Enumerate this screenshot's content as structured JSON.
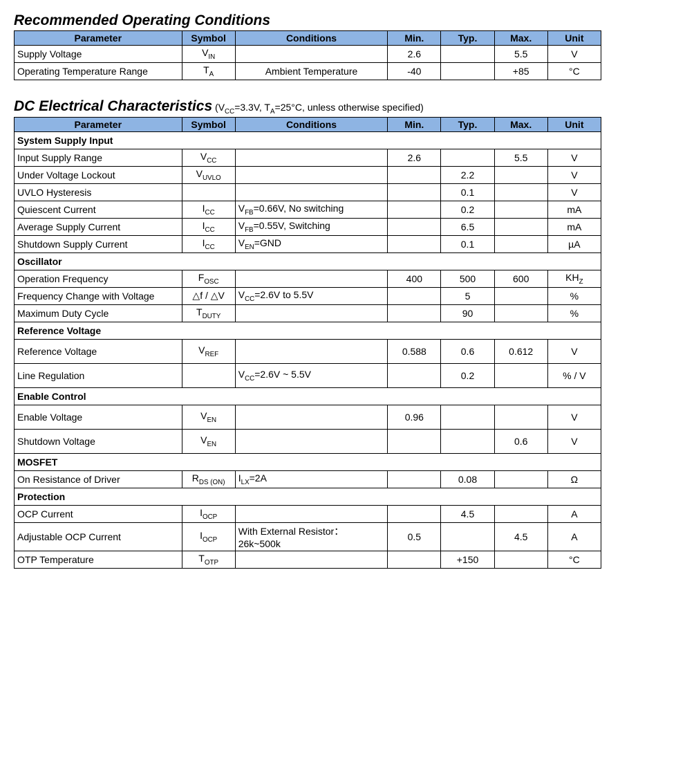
{
  "colors": {
    "header_bg": "#8eb4e3",
    "border": "#000000",
    "page_bg": "#ffffff",
    "text": "#000000"
  },
  "section1": {
    "title": "Recommended Operating Conditions",
    "headers": {
      "param": "Parameter",
      "symbol": "Symbol",
      "cond": "Conditions",
      "min": "Min.",
      "typ": "Typ.",
      "max": "Max.",
      "unit": "Unit"
    },
    "rows": [
      {
        "param": "Supply Voltage",
        "symbol_main": "V",
        "symbol_sub": "IN",
        "cond": "",
        "cond_align": "center",
        "min": "2.6",
        "typ": "",
        "max": "5.5",
        "unit": "V"
      },
      {
        "param": "Operating Temperature Range",
        "symbol_main": "T",
        "symbol_sub": "A",
        "cond": "Ambient Temperature",
        "cond_align": "center",
        "min": "-40",
        "typ": "",
        "max": "+85",
        "unit": "°C"
      }
    ]
  },
  "section2": {
    "title": "DC Electrical Characteristics",
    "title_cond_prefix": " (V",
    "title_cond_sub1": "CC",
    "title_cond_mid1": "=3.3V, T",
    "title_cond_sub2": "A",
    "title_cond_suffix": "=25°C, unless otherwise specified)",
    "headers": {
      "param": "Parameter",
      "symbol": "Symbol",
      "cond": "Conditions",
      "min": "Min.",
      "typ": "Typ.",
      "max": "Max.",
      "unit": "Unit"
    },
    "groups": [
      {
        "name": "System Supply Input",
        "rows": [
          {
            "param": "Input Supply Range",
            "symbol_main": "V",
            "symbol_sub": "CC",
            "cond_html": "",
            "min": "2.6",
            "typ": "",
            "max": "5.5",
            "unit": "V"
          },
          {
            "param": "Under Voltage Lockout",
            "symbol_main": "V",
            "symbol_sub": "UVLO",
            "cond_html": "",
            "min": "",
            "typ": "2.2",
            "max": "",
            "unit": "V"
          },
          {
            "param": "UVLO Hysteresis",
            "symbol_main": "",
            "symbol_sub": "",
            "cond_html": "",
            "min": "",
            "typ": "0.1",
            "max": "",
            "unit": "V"
          },
          {
            "param": "Quiescent Current",
            "symbol_main": "I",
            "symbol_sub": "CC",
            "cond_html": "V<span class=\"sub\">FB</span>=0.66V, No switching",
            "min": "",
            "typ": "0.2",
            "max": "",
            "unit": "mA"
          },
          {
            "param": "Average Supply Current",
            "symbol_main": "I",
            "symbol_sub": "CC",
            "cond_html": "V<span class=\"sub\">FB</span>=0.55V, Switching",
            "min": "",
            "typ": "6.5",
            "max": "",
            "unit": "mA"
          },
          {
            "param": "Shutdown Supply Current",
            "symbol_main": "I",
            "symbol_sub": "CC",
            "cond_html": "V<span class=\"sub\">EN</span>=GND",
            "min": "",
            "typ": "0.1",
            "max": "",
            "unit": "µA"
          }
        ]
      },
      {
        "name": "Oscillator",
        "rows": [
          {
            "param": "Operation Frequency",
            "symbol_main": "F",
            "symbol_sub": "OSC",
            "cond_html": "",
            "min": "400",
            "typ": "500",
            "max": "600",
            "unit_html": "KH<span class=\"sub\">Z</span>"
          },
          {
            "param": "Frequency Change with Voltage",
            "symbol_html": "△f / △V",
            "cond_html": "V<span class=\"sub\">CC</span>=2.6V to 5.5V",
            "min": "",
            "typ": "5",
            "max": "",
            "unit": "%"
          },
          {
            "param": "Maximum Duty Cycle",
            "symbol_main": "T",
            "symbol_sub": "DUTY",
            "cond_html": "",
            "min": "",
            "typ": "90",
            "max": "",
            "unit": "%"
          }
        ]
      },
      {
        "name": "Reference Voltage",
        "rows": [
          {
            "param": "Reference Voltage",
            "symbol_main": "V",
            "symbol_sub": "REF",
            "cond_html": "",
            "min": "0.588",
            "typ": "0.6",
            "max": "0.612",
            "unit": "V",
            "tall": true
          },
          {
            "param": "Line Regulation",
            "symbol_main": "",
            "symbol_sub": "",
            "cond_html": "V<span class=\"sub\">CC</span>=2.6V ~ 5.5V",
            "min": "",
            "typ": "0.2",
            "max": "",
            "unit": "% / V",
            "tall": true
          }
        ]
      },
      {
        "name": "Enable Control",
        "rows": [
          {
            "param": "Enable Voltage",
            "symbol_main": "V",
            "symbol_sub": "EN",
            "cond_html": "",
            "min": "0.96",
            "typ": "",
            "max": "",
            "unit": "V",
            "tall": true
          },
          {
            "param": "Shutdown Voltage",
            "symbol_main": "V",
            "symbol_sub": "EN",
            "cond_html": "",
            "min": "",
            "typ": "",
            "max": "0.6",
            "unit": "V",
            "tall": true
          }
        ]
      },
      {
        "name": "MOSFET",
        "rows": [
          {
            "param": "On Resistance of Driver",
            "symbol_main": "R",
            "symbol_sub": "DS (ON)",
            "cond_html": "I<span class=\"sub\">LX</span>=2A",
            "min": "",
            "typ": "0.08",
            "max": "",
            "unit": "Ω"
          }
        ]
      },
      {
        "name": "Protection",
        "rows": [
          {
            "param": "OCP Current",
            "symbol_main": "I",
            "symbol_sub": "OCP",
            "cond_html": "",
            "min": "",
            "typ": "4.5",
            "max": "",
            "unit": "A"
          },
          {
            "param": "Adjustable OCP Current",
            "symbol_main": "I",
            "symbol_sub": "OCP",
            "cond_html": "With External Resistor：26k~500k",
            "min": "0.5",
            "typ": "",
            "max": "4.5",
            "unit": "A",
            "tall": true
          },
          {
            "param": "OTP Temperature",
            "symbol_main": "T",
            "symbol_sub": "OTP",
            "cond_html": "",
            "min": "",
            "typ": "+150",
            "max": "",
            "unit": "°C"
          }
        ]
      }
    ]
  }
}
